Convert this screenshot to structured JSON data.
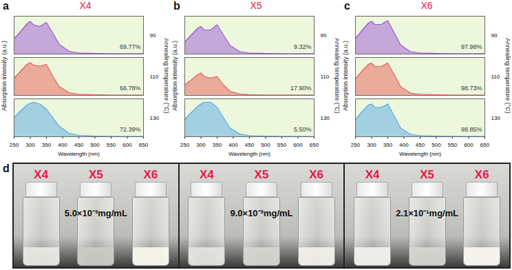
{
  "chart_data": [
    {
      "type": "area",
      "panel": "a",
      "title": "X4",
      "x_label": "Wavelength (nm)",
      "y_label": "Absorption intensity (a.u.)",
      "facet_label": "Annealing temperature (°C)",
      "x": [
        250,
        270,
        290,
        300,
        310,
        330,
        350,
        370,
        390,
        420,
        450,
        500,
        550,
        600,
        650
      ],
      "xlim": [
        250,
        650
      ],
      "xticks": [
        250,
        300,
        350,
        400,
        450,
        500,
        550,
        600,
        650
      ],
      "ylim": [
        0,
        1.1
      ],
      "tick_labels": "x",
      "series": [
        {
          "name": "90",
          "color": "#9b59d6",
          "annotation": "69.77%",
          "values": [
            0.45,
            0.65,
            0.88,
            0.95,
            0.85,
            0.8,
            0.92,
            0.6,
            0.28,
            0.08,
            0.03,
            0.02,
            0.01,
            0.01,
            0.01
          ]
        },
        {
          "name": "110",
          "color": "#e8605a",
          "annotation": "66.78%",
          "values": [
            0.5,
            0.7,
            0.9,
            0.95,
            0.88,
            0.85,
            0.9,
            0.55,
            0.25,
            0.08,
            0.03,
            0.02,
            0.01,
            0.01,
            0.01
          ]
        },
        {
          "name": "130",
          "color": "#5aa9e6",
          "annotation": "72.39%",
          "values": [
            0.55,
            0.75,
            0.92,
            0.97,
            1.0,
            0.95,
            0.8,
            0.55,
            0.3,
            0.1,
            0.04,
            0.02,
            0.01,
            0.01,
            0.01
          ]
        }
      ]
    },
    {
      "type": "area",
      "panel": "b",
      "title": "X5",
      "x_label": "Wavelength (nm)",
      "y_label": "Absorption intensity (a.u.)",
      "facet_label": "Annealing temperature (°C)",
      "x": [
        250,
        270,
        290,
        300,
        310,
        330,
        350,
        370,
        390,
        420,
        450,
        500,
        550,
        600,
        650
      ],
      "xlim": [
        250,
        650
      ],
      "xticks": [
        250,
        300,
        350,
        400,
        450,
        500,
        550,
        600,
        650
      ],
      "ylim": [
        0,
        1.1
      ],
      "tick_labels": "x",
      "series": [
        {
          "name": "90",
          "color": "#9b59d6",
          "annotation": "9.32%",
          "values": [
            0.35,
            0.55,
            0.75,
            0.8,
            0.7,
            0.7,
            0.85,
            0.55,
            0.25,
            0.07,
            0.03,
            0.02,
            0.01,
            0.01,
            0.01
          ]
        },
        {
          "name": "110",
          "color": "#e8605a",
          "annotation": "17.90%",
          "values": [
            0.3,
            0.45,
            0.6,
            0.65,
            0.55,
            0.5,
            0.55,
            0.3,
            0.12,
            0.04,
            0.02,
            0.01,
            0.01,
            0.01,
            0.01
          ]
        },
        {
          "name": "130",
          "color": "#5aa9e6",
          "annotation": "5.50%",
          "values": [
            0.5,
            0.7,
            0.88,
            0.95,
            1.0,
            1.0,
            0.85,
            0.55,
            0.25,
            0.08,
            0.03,
            0.02,
            0.01,
            0.01,
            0.01
          ]
        }
      ]
    },
    {
      "type": "area",
      "panel": "c",
      "title": "X6",
      "x_label": "Wavelength (nm)",
      "y_label": "Absorption intensity (a.u.)",
      "facet_label": "Annealing temperature (°C)",
      "x": [
        250,
        270,
        290,
        300,
        310,
        330,
        350,
        370,
        390,
        420,
        450,
        500,
        550,
        600,
        650
      ],
      "xlim": [
        250,
        650
      ],
      "xticks": [
        250,
        300,
        350,
        400,
        450,
        500,
        550,
        600,
        650
      ],
      "ylim": [
        0,
        1.1
      ],
      "tick_labels": "x",
      "series": [
        {
          "name": "90",
          "color": "#9b59d6",
          "annotation": "97.98%",
          "values": [
            0.45,
            0.68,
            0.9,
            0.95,
            0.86,
            0.86,
            0.97,
            0.62,
            0.26,
            0.07,
            0.03,
            0.02,
            0.01,
            0.01,
            0.01
          ]
        },
        {
          "name": "110",
          "color": "#e8605a",
          "annotation": "98.73%",
          "values": [
            0.48,
            0.7,
            0.9,
            0.94,
            0.84,
            0.84,
            0.94,
            0.6,
            0.25,
            0.07,
            0.03,
            0.02,
            0.01,
            0.01,
            0.01
          ]
        },
        {
          "name": "130",
          "color": "#5aa9e6",
          "annotation": "98.85%",
          "values": [
            0.5,
            0.72,
            0.92,
            0.95,
            0.85,
            0.85,
            0.95,
            0.6,
            0.25,
            0.07,
            0.03,
            0.02,
            0.01,
            0.01,
            0.01
          ]
        }
      ]
    }
  ],
  "photos": {
    "panel": "d",
    "groups": [
      {
        "labels": [
          "X4",
          "X5",
          "X6"
        ],
        "concentration": "5.0×10⁻³mg/mL"
      },
      {
        "labels": [
          "X4",
          "X5",
          "X6"
        ],
        "concentration": "9.0×10⁻³mg/mL"
      },
      {
        "labels": [
          "X4",
          "X5",
          "X6"
        ],
        "concentration": "2.1×10⁻¹mg/mL"
      }
    ]
  }
}
